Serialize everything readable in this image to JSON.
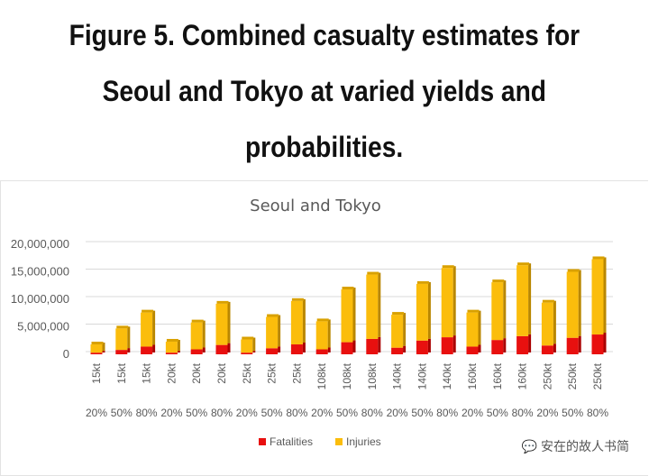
{
  "header": {
    "title_line1": "Figure 5. Combined casualty estimates for",
    "title_line2": "Seoul and Tokyo at varied yields and",
    "title_line3": "probabilities."
  },
  "watermark": "安在的故人书简",
  "chart_data": {
    "type": "bar",
    "stacked": true,
    "title": "Seoul and Tokyo",
    "categories": [
      "15kt",
      "15kt",
      "15kt",
      "20kt",
      "20kt",
      "20kt",
      "25kt",
      "25kt",
      "25kt",
      "108kt",
      "108kt",
      "108kt",
      "140kt",
      "140kt",
      "140kt",
      "160kt",
      "160kt",
      "160kt",
      "250kt",
      "250kt",
      "250kt"
    ],
    "probabilities": [
      "20%",
      "50%",
      "80%",
      "20%",
      "50%",
      "80%",
      "20%",
      "50%",
      "80%",
      "20%",
      "50%",
      "80%",
      "20%",
      "50%",
      "80%",
      "20%",
      "50%",
      "80%",
      "20%",
      "50%",
      "80%"
    ],
    "series": [
      {
        "name": "Fatalities",
        "color": "#e8100f",
        "values": [
          300000,
          800000,
          1400000,
          300000,
          900000,
          1700000,
          300000,
          1100000,
          1800000,
          900000,
          2200000,
          2800000,
          1200000,
          2500000,
          3100000,
          1400000,
          2600000,
          3300000,
          1600000,
          3000000,
          3600000
        ]
      },
      {
        "name": "Injuries",
        "color": "#fbbd0c",
        "values": [
          1500000,
          3900000,
          6200000,
          2000000,
          4900000,
          7500000,
          2400000,
          5700000,
          7900000,
          5100000,
          9600000,
          11700000,
          6000000,
          10300000,
          12600000,
          6200000,
          10500000,
          12900000,
          7800000,
          12000000,
          13700000
        ]
      }
    ],
    "yticks": [
      "0",
      "5,000,000",
      "10,000,000",
      "15,000,000",
      "20,000,000"
    ],
    "ylim": [
      0,
      20000000
    ],
    "grid": true,
    "legend": "bottom"
  }
}
